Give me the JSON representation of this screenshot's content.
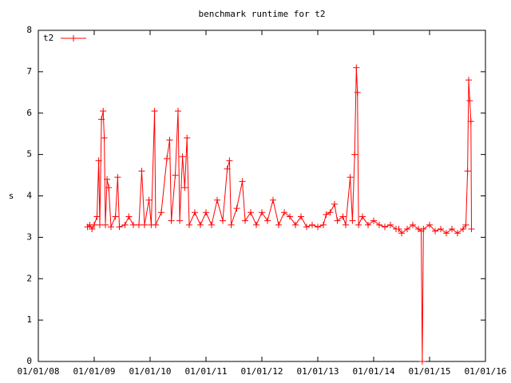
{
  "chart_data": {
    "type": "line",
    "title": "benchmark runtime for t2",
    "y_label": "s",
    "xlim": [
      2008,
      2016
    ],
    "xticks": [
      {
        "value": 2008,
        "label": "01/01/08"
      },
      {
        "value": 2009,
        "label": "01/01/09"
      },
      {
        "value": 2010,
        "label": "01/01/10"
      },
      {
        "value": 2011,
        "label": "01/01/11"
      },
      {
        "value": 2012,
        "label": "01/01/12"
      },
      {
        "value": 2013,
        "label": "01/01/13"
      },
      {
        "value": 2014,
        "label": "01/01/14"
      },
      {
        "value": 2015,
        "label": "01/01/15"
      },
      {
        "value": 2016,
        "label": "01/01/16"
      }
    ],
    "ylim": [
      0,
      8
    ],
    "yticks": [
      0,
      1,
      2,
      3,
      4,
      5,
      6,
      7,
      8
    ],
    "grid": false,
    "legend": "top-left",
    "series": [
      {
        "name": "t2",
        "color": "#ff0000",
        "x": [
          2008.88,
          2008.92,
          2008.96,
          2009.0,
          2009.05,
          2009.08,
          2009.1,
          2009.13,
          2009.16,
          2009.18,
          2009.2,
          2009.23,
          2009.26,
          2009.3,
          2009.38,
          2009.42,
          2009.45,
          2009.55,
          2009.62,
          2009.7,
          2009.8,
          2009.85,
          2009.9,
          2009.98,
          2010.02,
          2010.08,
          2010.1,
          2010.2,
          2010.3,
          2010.35,
          2010.38,
          2010.45,
          2010.5,
          2010.53,
          2010.58,
          2010.62,
          2010.66,
          2010.7,
          2010.8,
          2010.9,
          2011.0,
          2011.1,
          2011.2,
          2011.3,
          2011.38,
          2011.42,
          2011.45,
          2011.55,
          2011.65,
          2011.7,
          2011.8,
          2011.9,
          2012.0,
          2012.1,
          2012.2,
          2012.3,
          2012.4,
          2012.5,
          2012.6,
          2012.7,
          2012.8,
          2012.9,
          2013.0,
          2013.1,
          2013.15,
          2013.22,
          2013.3,
          2013.35,
          2013.45,
          2013.5,
          2013.58,
          2013.62,
          2013.66,
          2013.69,
          2013.71,
          2013.73,
          2013.8,
          2013.9,
          2014.0,
          2014.1,
          2014.2,
          2014.3,
          2014.4,
          2014.45,
          2014.5,
          2014.6,
          2014.7,
          2014.8,
          2014.85,
          2014.87,
          2014.89,
          2015.0,
          2015.1,
          2015.2,
          2015.3,
          2015.4,
          2015.5,
          2015.6,
          2015.65,
          2015.68,
          2015.7,
          2015.72,
          2015.74,
          2015.75
        ],
        "values": [
          3.25,
          3.3,
          3.2,
          3.3,
          3.5,
          4.85,
          3.3,
          5.85,
          6.05,
          5.4,
          3.3,
          4.4,
          4.2,
          3.25,
          3.5,
          4.45,
          3.25,
          3.3,
          3.5,
          3.3,
          3.3,
          4.6,
          3.3,
          3.9,
          3.3,
          6.05,
          3.3,
          3.6,
          4.9,
          5.35,
          3.4,
          4.5,
          6.05,
          3.4,
          4.95,
          4.2,
          5.4,
          3.3,
          3.6,
          3.3,
          3.6,
          3.3,
          3.9,
          3.4,
          4.65,
          4.85,
          3.3,
          3.7,
          4.35,
          3.4,
          3.6,
          3.3,
          3.6,
          3.4,
          3.9,
          3.3,
          3.6,
          3.5,
          3.3,
          3.5,
          3.25,
          3.3,
          3.25,
          3.3,
          3.55,
          3.6,
          3.8,
          3.4,
          3.5,
          3.3,
          4.45,
          3.4,
          5.0,
          7.1,
          6.5,
          3.3,
          3.5,
          3.3,
          3.4,
          3.3,
          3.25,
          3.3,
          3.2,
          3.2,
          3.1,
          3.2,
          3.3,
          3.2,
          3.15,
          0,
          3.2,
          3.3,
          3.15,
          3.2,
          3.1,
          3.2,
          3.1,
          3.2,
          3.3,
          4.6,
          6.8,
          6.3,
          5.8,
          3.2
        ]
      }
    ]
  }
}
